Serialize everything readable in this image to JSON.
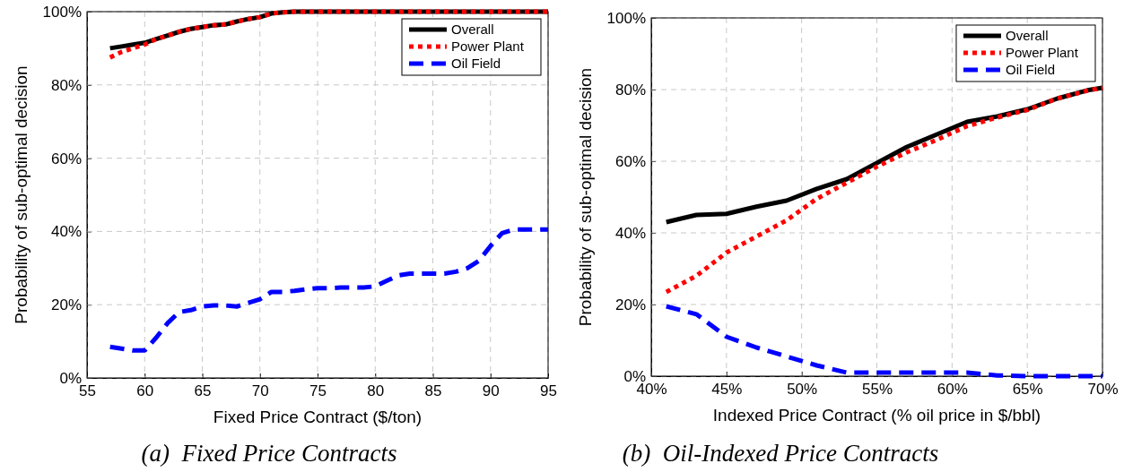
{
  "chart_data": [
    {
      "type": "line",
      "xlabel": "Fixed Price Contract ($/ton)",
      "ylabel": "Probability of sub-optimal decision",
      "annotations": [
        "(a)  Fixed Price Contracts"
      ],
      "x": [
        57,
        58,
        59,
        60,
        61,
        62,
        63,
        64,
        65,
        66,
        67,
        68,
        69,
        70,
        71,
        72,
        73,
        74,
        75,
        76,
        77,
        78,
        79,
        80,
        81,
        82,
        83,
        84,
        85,
        86,
        87,
        88,
        89,
        90,
        91,
        92,
        93,
        94,
        95
      ],
      "series": [
        {
          "name": "Overall",
          "color": "#000000",
          "line_style": "solid",
          "values": [
            90,
            90.5,
            91,
            91.5,
            92.5,
            93.5,
            94.5,
            95.3,
            95.8,
            96.3,
            96.5,
            97.3,
            98,
            98.5,
            99.5,
            99.8,
            100,
            100,
            100,
            100,
            100,
            100,
            100,
            100,
            100,
            100,
            100,
            100,
            100,
            100,
            100,
            100,
            100,
            100,
            100,
            100,
            100,
            100,
            100
          ]
        },
        {
          "name": "Power Plant",
          "color": "#ff0000",
          "line_style": "dotted",
          "values": [
            87.5,
            89,
            90,
            91,
            92.5,
            93.5,
            94.5,
            95.3,
            95.8,
            96.3,
            96.5,
            97.3,
            98,
            98.5,
            99.5,
            99.8,
            100,
            100,
            100,
            100,
            100,
            100,
            100,
            100,
            100,
            100,
            100,
            100,
            100,
            100,
            100,
            100,
            100,
            100,
            100,
            100,
            100,
            100,
            100
          ]
        },
        {
          "name": "Oil Field",
          "color": "#0000ff",
          "line_style": "dashed",
          "values": [
            8.5,
            8,
            7.5,
            7.5,
            11,
            15,
            18,
            18.5,
            19.5,
            19.8,
            19.8,
            19.5,
            20.5,
            21.5,
            23.5,
            23.5,
            23.8,
            24.2,
            24.5,
            24.5,
            24.7,
            24.7,
            24.7,
            25,
            26.5,
            28,
            28.5,
            28.5,
            28.5,
            28.5,
            29,
            30,
            32,
            36,
            39.5,
            40.5,
            40.5,
            40.5,
            40.5
          ]
        }
      ],
      "xlim": [
        55,
        95
      ],
      "xticks": [
        55,
        60,
        65,
        70,
        75,
        80,
        85,
        90,
        95
      ],
      "ylim": [
        0,
        100
      ],
      "yticks": [
        {
          "value": 0,
          "label": "0%"
        },
        {
          "value": 20,
          "label": "20%"
        },
        {
          "value": 40,
          "label": "40%"
        },
        {
          "value": 60,
          "label": "60%"
        },
        {
          "value": 80,
          "label": "80%"
        },
        {
          "value": 100,
          "label": "100%"
        }
      ],
      "grid": true,
      "legend": "top right"
    },
    {
      "type": "line",
      "xlabel": "Indexed Price Contract (% oil price in $/bbl)",
      "ylabel": "Probability of sub-optimal decision",
      "annotations": [
        "(b)  Oil-Indexed Price Contracts"
      ],
      "x": [
        41,
        43,
        45,
        47,
        49,
        51,
        53,
        55,
        57,
        59,
        61,
        63,
        65,
        67,
        69,
        70
      ],
      "series": [
        {
          "name": "Overall",
          "color": "#000000",
          "line_style": "solid",
          "values": [
            43,
            45,
            45.3,
            47.3,
            49,
            52.3,
            55,
            59.5,
            64,
            67.5,
            71,
            72.5,
            74.5,
            77.5,
            79.8,
            80.5
          ]
        },
        {
          "name": "Power Plant",
          "color": "#ff0000",
          "line_style": "dotted",
          "values": [
            23.5,
            28,
            34.5,
            39,
            43.5,
            49.5,
            54,
            58.5,
            62.5,
            66,
            69.8,
            72.2,
            74.3,
            77.5,
            79.7,
            80.5
          ]
        },
        {
          "name": "Oil Field",
          "color": "#0000ff",
          "line_style": "dashed",
          "values": [
            19.5,
            17.3,
            11,
            8,
            5.5,
            3,
            1,
            1,
            1,
            1,
            1,
            0.2,
            0,
            0,
            0,
            0
          ]
        }
      ],
      "xlim": [
        40,
        70
      ],
      "xticks": [
        {
          "value": 40,
          "label": "40%"
        },
        {
          "value": 45,
          "label": "45%"
        },
        {
          "value": 50,
          "label": "50%"
        },
        {
          "value": 55,
          "label": "55%"
        },
        {
          "value": 60,
          "label": "60%"
        },
        {
          "value": 65,
          "label": "65%"
        },
        {
          "value": 70,
          "label": "70%"
        }
      ],
      "ylim": [
        0,
        100
      ],
      "yticks": [
        {
          "value": 0,
          "label": "0%"
        },
        {
          "value": 20,
          "label": "20%"
        },
        {
          "value": 40,
          "label": "40%"
        },
        {
          "value": 60,
          "label": "60%"
        },
        {
          "value": 80,
          "label": "80%"
        },
        {
          "value": 100,
          "label": "100%"
        }
      ],
      "grid": true,
      "legend": "top right"
    }
  ]
}
